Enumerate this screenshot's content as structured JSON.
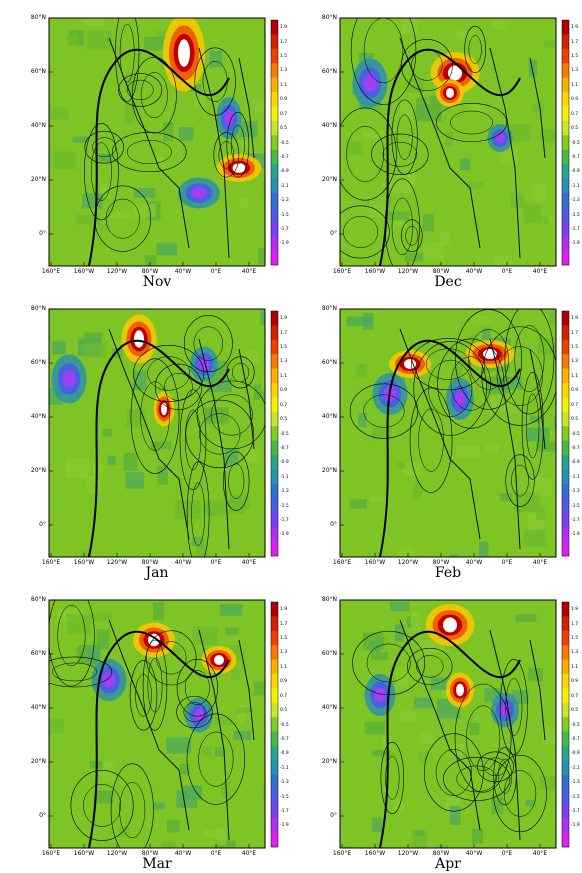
{
  "panels": [
    {
      "month": "Nov",
      "highs": [
        [
          135,
          35,
          30,
          55
        ],
        [
          190,
          150,
          32,
          20
        ]
      ],
      "lows": [
        [
          150,
          175,
          30,
          22
        ],
        [
          180,
          100,
          18,
          30
        ]
      ]
    },
    {
      "month": "Dec",
      "highs": [
        [
          115,
          55,
          35,
          30
        ],
        [
          110,
          75,
          20,
          20
        ]
      ],
      "lows": [
        [
          30,
          65,
          25,
          35
        ],
        [
          160,
          120,
          18,
          20
        ]
      ]
    },
    {
      "month": "Jan",
      "highs": [
        [
          90,
          30,
          25,
          35
        ],
        [
          115,
          100,
          15,
          25
        ]
      ],
      "lows": [
        [
          20,
          70,
          25,
          35
        ],
        [
          155,
          55,
          20,
          25
        ]
      ]
    },
    {
      "month": "Feb",
      "highs": [
        [
          70,
          55,
          30,
          20
        ],
        [
          150,
          45,
          35,
          20
        ]
      ],
      "lows": [
        [
          50,
          85,
          25,
          30
        ],
        [
          120,
          90,
          20,
          30
        ]
      ]
    },
    {
      "month": "Mar",
      "highs": [
        [
          105,
          40,
          30,
          25
        ],
        [
          170,
          60,
          25,
          20
        ]
      ],
      "lows": [
        [
          60,
          80,
          25,
          30
        ],
        [
          150,
          115,
          20,
          25
        ]
      ]
    },
    {
      "month": "Apr",
      "highs": [
        [
          110,
          25,
          35,
          30
        ],
        [
          120,
          90,
          20,
          25
        ]
      ],
      "lows": [
        [
          40,
          95,
          22,
          30
        ],
        [
          165,
          110,
          20,
          25
        ]
      ]
    }
  ],
  "y_ticks": [
    "80°N",
    "60°N",
    "40°N",
    "20°N",
    "0°"
  ],
  "x_ticks": [
    "160°E",
    "160°W",
    "120°W",
    "80°W",
    "40°W",
    "0°E",
    "40°E"
  ],
  "colorbar_labels": [
    "1.9",
    "1.7",
    "1.5",
    "1.3",
    "1.1",
    "0.9",
    "0.7",
    "0.5",
    "-0.5",
    "-0.7",
    "-0.9",
    "-1.1",
    "-1.3",
    "-1.5",
    "-1.7",
    "-1.9"
  ],
  "colorbar_colors": [
    "#b00000",
    "#d81e00",
    "#f04000",
    "#f87a00",
    "#fcb000",
    "#ffd400",
    "#f4f400",
    "#c8e628",
    "#80cc20",
    "#48b848",
    "#28a888",
    "#2890b0",
    "#3070d0",
    "#5058e8",
    "#7840f0",
    "#b030f8",
    "#e020f0"
  ],
  "colors": {
    "ocean": "#7dc424",
    "coast": "#000000",
    "white": "#ffffff"
  }
}
